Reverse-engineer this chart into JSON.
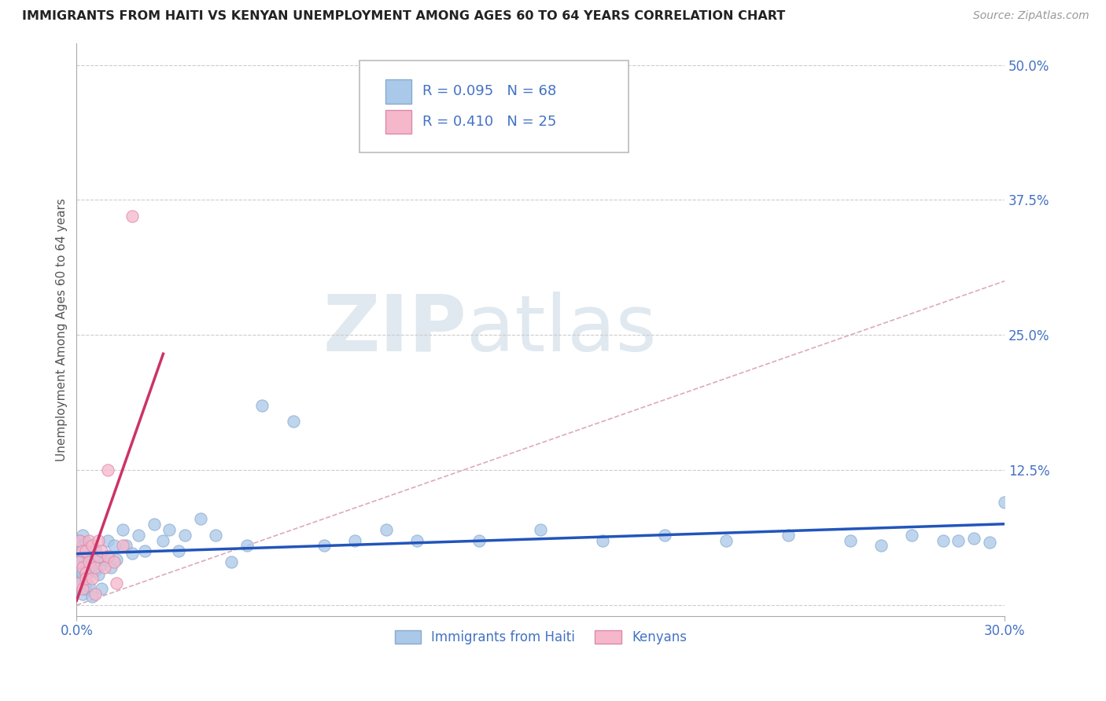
{
  "title": "IMMIGRANTS FROM HAITI VS KENYAN UNEMPLOYMENT AMONG AGES 60 TO 64 YEARS CORRELATION CHART",
  "source": "Source: ZipAtlas.com",
  "ylabel": "Unemployment Among Ages 60 to 64 years",
  "xlim": [
    0.0,
    0.3
  ],
  "ylim": [
    -0.01,
    0.52
  ],
  "ytick_positions": [
    0.0,
    0.125,
    0.25,
    0.375,
    0.5
  ],
  "ytick_labels": [
    "",
    "12.5%",
    "25.0%",
    "37.5%",
    "50.0%"
  ],
  "grid_color": "#cccccc",
  "background_color": "#ffffff",
  "haiti_color": "#aac8e8",
  "kenya_color": "#f5b8cb",
  "haiti_line_color": "#2255bb",
  "kenya_line_color": "#cc3366",
  "diag_line_color": "#ddaabb",
  "legend_R_haiti": "R = 0.095",
  "legend_N_haiti": "N = 68",
  "legend_R_kenya": "R = 0.410",
  "legend_N_kenya": "N = 25",
  "legend_label_haiti": "Immigrants from Haiti",
  "legend_label_kenya": "Kenyans",
  "watermark_zip": "ZIP",
  "watermark_atlas": "atlas",
  "text_color": "#4472c4",
  "haiti_x": [
    0.001,
    0.001,
    0.001,
    0.001,
    0.002,
    0.002,
    0.002,
    0.002,
    0.002,
    0.002,
    0.003,
    0.003,
    0.003,
    0.003,
    0.003,
    0.004,
    0.004,
    0.004,
    0.004,
    0.005,
    0.005,
    0.005,
    0.006,
    0.006,
    0.007,
    0.007,
    0.008,
    0.008,
    0.009,
    0.01,
    0.01,
    0.011,
    0.012,
    0.013,
    0.015,
    0.016,
    0.018,
    0.02,
    0.022,
    0.025,
    0.028,
    0.03,
    0.033,
    0.035,
    0.04,
    0.045,
    0.05,
    0.055,
    0.06,
    0.07,
    0.08,
    0.09,
    0.1,
    0.11,
    0.13,
    0.15,
    0.17,
    0.19,
    0.21,
    0.23,
    0.25,
    0.26,
    0.27,
    0.28,
    0.285,
    0.29,
    0.295,
    0.3
  ],
  "haiti_y": [
    0.04,
    0.02,
    0.06,
    0.035,
    0.025,
    0.045,
    0.01,
    0.055,
    0.03,
    0.065,
    0.038,
    0.015,
    0.048,
    0.028,
    0.058,
    0.033,
    0.043,
    0.018,
    0.053,
    0.037,
    0.047,
    0.008,
    0.032,
    0.052,
    0.028,
    0.042,
    0.038,
    0.015,
    0.042,
    0.045,
    0.06,
    0.035,
    0.055,
    0.042,
    0.07,
    0.055,
    0.048,
    0.065,
    0.05,
    0.075,
    0.06,
    0.07,
    0.05,
    0.065,
    0.08,
    0.065,
    0.04,
    0.055,
    0.185,
    0.17,
    0.055,
    0.06,
    0.07,
    0.06,
    0.06,
    0.07,
    0.06,
    0.065,
    0.06,
    0.065,
    0.06,
    0.055,
    0.065,
    0.06,
    0.06,
    0.062,
    0.058,
    0.095
  ],
  "kenya_x": [
    0.001,
    0.001,
    0.001,
    0.002,
    0.002,
    0.002,
    0.003,
    0.003,
    0.003,
    0.004,
    0.004,
    0.005,
    0.005,
    0.006,
    0.006,
    0.007,
    0.007,
    0.008,
    0.009,
    0.01,
    0.01,
    0.012,
    0.013,
    0.015,
    0.018
  ],
  "kenya_y": [
    0.04,
    0.02,
    0.06,
    0.035,
    0.015,
    0.05,
    0.03,
    0.05,
    0.025,
    0.04,
    0.06,
    0.025,
    0.055,
    0.035,
    0.01,
    0.045,
    0.06,
    0.05,
    0.035,
    0.045,
    0.125,
    0.04,
    0.02,
    0.055,
    0.36
  ]
}
